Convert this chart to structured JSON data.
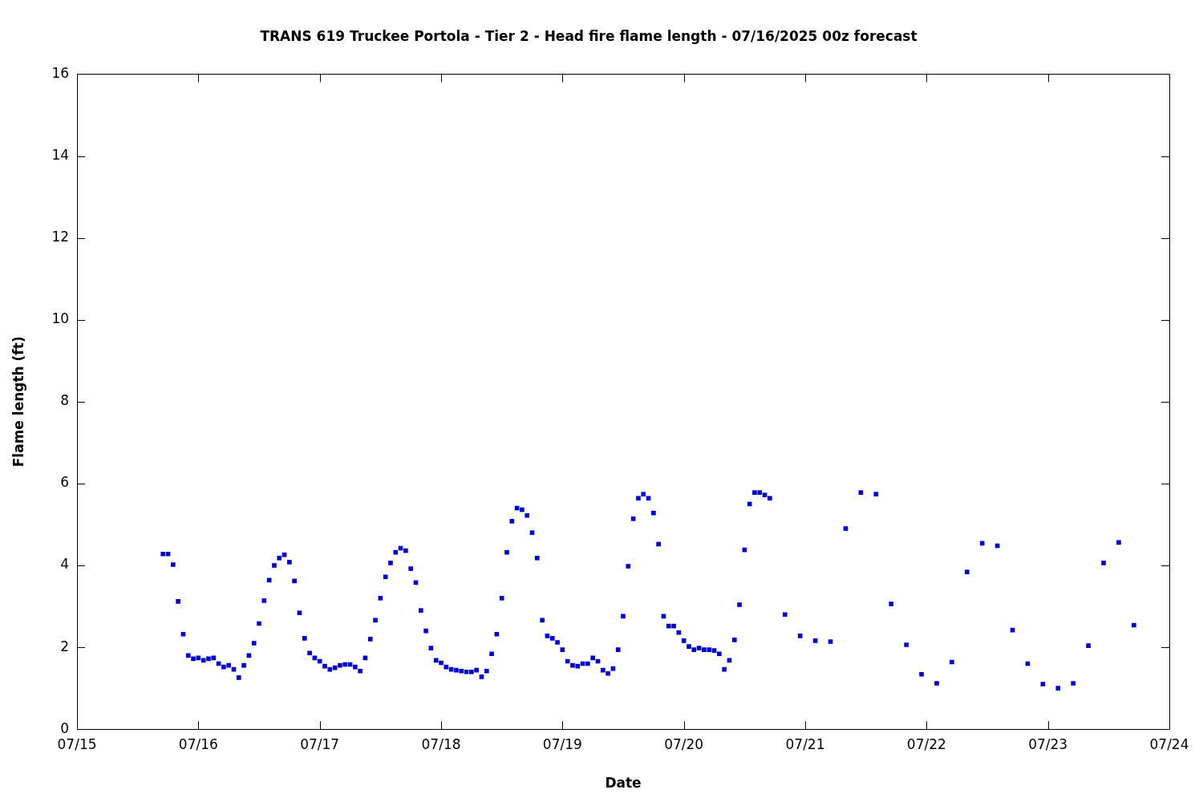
{
  "chart_data": {
    "type": "scatter",
    "title": "TRANS 619 Truckee Portola - Tier 2 - Head fire flame length - 07/16/2025 00z forecast",
    "xlabel": "Date",
    "ylabel": "Flame length (ft)",
    "marker": "square",
    "legend": false,
    "xlim": [
      "2025-07-15",
      "2025-07-24"
    ],
    "ylim": [
      0,
      16
    ],
    "yticks": [
      0,
      2,
      4,
      6,
      8,
      10,
      12,
      14,
      16
    ],
    "xticks": [
      {
        "value": "2025-07-15",
        "label": "07/15"
      },
      {
        "value": "2025-07-16",
        "label": "07/16"
      },
      {
        "value": "2025-07-17",
        "label": "07/17"
      },
      {
        "value": "2025-07-18",
        "label": "07/18"
      },
      {
        "value": "2025-07-19",
        "label": "07/19"
      },
      {
        "value": "2025-07-20",
        "label": "07/20"
      },
      {
        "value": "2025-07-21",
        "label": "07/21"
      },
      {
        "value": "2025-07-22",
        "label": "07/22"
      },
      {
        "value": "2025-07-23",
        "label": "07/23"
      },
      {
        "value": "2025-07-24",
        "label": "07/24"
      }
    ],
    "series": [
      {
        "color": "#0000cc",
        "x": [
          "2025-07-15T17:00",
          "2025-07-15T18:00",
          "2025-07-15T19:00",
          "2025-07-15T20:00",
          "2025-07-15T21:00",
          "2025-07-15T22:00",
          "2025-07-15T23:00",
          "2025-07-16T00:00",
          "2025-07-16T01:00",
          "2025-07-16T02:00",
          "2025-07-16T03:00",
          "2025-07-16T04:00",
          "2025-07-16T05:00",
          "2025-07-16T06:00",
          "2025-07-16T07:00",
          "2025-07-16T08:00",
          "2025-07-16T09:00",
          "2025-07-16T10:00",
          "2025-07-16T11:00",
          "2025-07-16T12:00",
          "2025-07-16T13:00",
          "2025-07-16T14:00",
          "2025-07-16T15:00",
          "2025-07-16T16:00",
          "2025-07-16T17:00",
          "2025-07-16T18:00",
          "2025-07-16T19:00",
          "2025-07-16T20:00",
          "2025-07-16T21:00",
          "2025-07-16T22:00",
          "2025-07-16T23:00",
          "2025-07-17T00:00",
          "2025-07-17T01:00",
          "2025-07-17T02:00",
          "2025-07-17T03:00",
          "2025-07-17T04:00",
          "2025-07-17T05:00",
          "2025-07-17T06:00",
          "2025-07-17T07:00",
          "2025-07-17T08:00",
          "2025-07-17T09:00",
          "2025-07-17T10:00",
          "2025-07-17T11:00",
          "2025-07-17T12:00",
          "2025-07-17T13:00",
          "2025-07-17T14:00",
          "2025-07-17T15:00",
          "2025-07-17T16:00",
          "2025-07-17T17:00",
          "2025-07-17T18:00",
          "2025-07-17T19:00",
          "2025-07-17T20:00",
          "2025-07-17T21:00",
          "2025-07-17T22:00",
          "2025-07-17T23:00",
          "2025-07-18T00:00",
          "2025-07-18T01:00",
          "2025-07-18T02:00",
          "2025-07-18T03:00",
          "2025-07-18T04:00",
          "2025-07-18T05:00",
          "2025-07-18T06:00",
          "2025-07-18T07:00",
          "2025-07-18T08:00",
          "2025-07-18T09:00",
          "2025-07-18T10:00",
          "2025-07-18T11:00",
          "2025-07-18T12:00",
          "2025-07-18T13:00",
          "2025-07-18T14:00",
          "2025-07-18T15:00",
          "2025-07-18T16:00",
          "2025-07-18T17:00",
          "2025-07-18T18:00",
          "2025-07-18T19:00",
          "2025-07-18T20:00",
          "2025-07-18T21:00",
          "2025-07-18T22:00",
          "2025-07-18T23:00",
          "2025-07-19T00:00",
          "2025-07-19T01:00",
          "2025-07-19T02:00",
          "2025-07-19T03:00",
          "2025-07-19T04:00",
          "2025-07-19T05:00",
          "2025-07-19T06:00",
          "2025-07-19T07:00",
          "2025-07-19T08:00",
          "2025-07-19T09:00",
          "2025-07-19T10:00",
          "2025-07-19T11:00",
          "2025-07-19T12:00",
          "2025-07-19T13:00",
          "2025-07-19T14:00",
          "2025-07-19T15:00",
          "2025-07-19T16:00",
          "2025-07-19T17:00",
          "2025-07-19T18:00",
          "2025-07-19T19:00",
          "2025-07-19T20:00",
          "2025-07-19T21:00",
          "2025-07-19T22:00",
          "2025-07-19T23:00",
          "2025-07-20T00:00",
          "2025-07-20T01:00",
          "2025-07-20T02:00",
          "2025-07-20T03:00",
          "2025-07-20T04:00",
          "2025-07-20T05:00",
          "2025-07-20T06:00",
          "2025-07-20T07:00",
          "2025-07-20T08:00",
          "2025-07-20T09:00",
          "2025-07-20T10:00",
          "2025-07-20T11:00",
          "2025-07-20T12:00",
          "2025-07-20T13:00",
          "2025-07-20T14:00",
          "2025-07-20T15:00",
          "2025-07-20T16:00",
          "2025-07-20T17:00",
          "2025-07-20T20:00",
          "2025-07-20T23:00",
          "2025-07-21T02:00",
          "2025-07-21T05:00",
          "2025-07-21T08:00",
          "2025-07-21T11:00",
          "2025-07-21T14:00",
          "2025-07-21T17:00",
          "2025-07-21T20:00",
          "2025-07-21T23:00",
          "2025-07-22T02:00",
          "2025-07-22T05:00",
          "2025-07-22T08:00",
          "2025-07-22T11:00",
          "2025-07-22T14:00",
          "2025-07-22T17:00",
          "2025-07-22T20:00",
          "2025-07-22T23:00",
          "2025-07-23T02:00",
          "2025-07-23T05:00",
          "2025-07-23T08:00",
          "2025-07-23T11:00",
          "2025-07-23T14:00",
          "2025-07-23T17:00"
        ],
        "values": [
          4.28,
          4.28,
          4.02,
          3.12,
          2.32,
          1.8,
          1.72,
          1.74,
          1.68,
          1.72,
          1.74,
          1.6,
          1.52,
          1.56,
          1.46,
          1.26,
          1.56,
          1.8,
          2.1,
          2.58,
          3.14,
          3.64,
          4.0,
          4.18,
          4.26,
          4.08,
          3.62,
          2.84,
          2.22,
          1.86,
          1.74,
          1.66,
          1.54,
          1.46,
          1.5,
          1.56,
          1.58,
          1.58,
          1.52,
          1.42,
          1.74,
          2.2,
          2.66,
          3.2,
          3.72,
          4.06,
          4.32,
          4.42,
          4.36,
          3.92,
          3.58,
          2.9,
          2.4,
          1.98,
          1.68,
          1.62,
          1.52,
          1.46,
          1.44,
          1.42,
          1.4,
          1.4,
          1.44,
          1.28,
          1.42,
          1.84,
          2.32,
          3.2,
          4.32,
          5.08,
          5.4,
          5.36,
          5.22,
          4.8,
          4.18,
          2.66,
          2.28,
          2.22,
          2.12,
          1.94,
          1.66,
          1.56,
          1.54,
          1.6,
          1.6,
          1.74,
          1.66,
          1.44,
          1.36,
          1.48,
          1.94,
          2.76,
          3.98,
          5.14,
          5.64,
          5.74,
          5.64,
          5.28,
          4.52,
          2.76,
          2.52,
          2.52,
          2.36,
          2.16,
          2.02,
          1.94,
          1.98,
          1.94,
          1.94,
          1.92,
          1.84,
          1.46,
          1.68,
          2.18,
          3.04,
          4.38,
          5.5,
          5.78,
          5.78,
          5.72,
          5.64,
          2.8,
          2.28,
          2.16,
          2.14,
          4.9,
          5.78,
          5.74,
          3.06,
          2.06,
          1.34,
          1.12,
          1.64,
          3.84,
          4.54,
          4.48,
          2.42,
          1.6,
          1.1,
          1.0,
          1.12,
          2.04,
          4.06,
          4.56,
          2.54
        ]
      }
    ]
  }
}
